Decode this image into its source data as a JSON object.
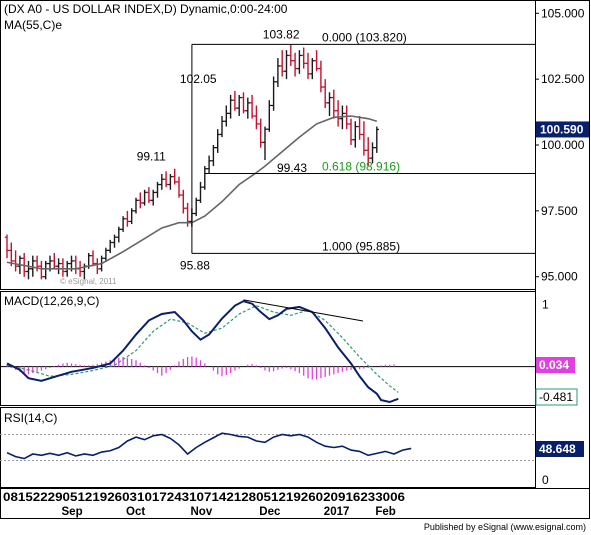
{
  "chart_data": [
    {
      "type": "ohlc",
      "title": "(DX A0 - US DOLLAR INDEX,D) Dynamic,0:00-24:00",
      "ma_label": "MA(55,C)e",
      "watermark": "© eSignal, 2011",
      "ylim": [
        94.8,
        105.2
      ],
      "y_ticks": [
        "105.000",
        "102.500",
        "100.000",
        "97.500",
        "95.000"
      ],
      "y_tick_values": [
        105,
        102.5,
        100,
        97.5,
        95
      ],
      "last_price": "100.590",
      "last_price_value": 100.59,
      "bars": [
        [
          96.5,
          96.6,
          95.7,
          96.0
        ],
        [
          96.0,
          96.3,
          95.4,
          95.6
        ],
        [
          95.6,
          96.0,
          95.2,
          95.4
        ],
        [
          95.4,
          95.8,
          95.1,
          95.7
        ],
        [
          95.7,
          95.9,
          95.0,
          95.2
        ],
        [
          95.2,
          95.6,
          94.9,
          95.3
        ],
        [
          95.3,
          95.8,
          95.0,
          95.6
        ],
        [
          95.6,
          95.8,
          95.2,
          95.4
        ],
        [
          95.4,
          95.6,
          94.9,
          95.0
        ],
        [
          95.0,
          95.6,
          94.9,
          95.5
        ],
        [
          95.5,
          95.8,
          95.2,
          95.6
        ],
        [
          95.6,
          95.9,
          95.3,
          95.4
        ],
        [
          95.4,
          95.7,
          95.1,
          95.5
        ],
        [
          95.5,
          95.7,
          95.0,
          95.2
        ],
        [
          95.2,
          95.6,
          95.0,
          95.5
        ],
        [
          95.5,
          95.8,
          95.2,
          95.6
        ],
        [
          95.6,
          95.8,
          95.1,
          95.3
        ],
        [
          95.3,
          95.6,
          95.0,
          95.2
        ],
        [
          95.2,
          95.5,
          94.9,
          95.4
        ],
        [
          95.4,
          95.9,
          95.3,
          95.8
        ],
        [
          95.8,
          96.0,
          95.4,
          95.5
        ],
        [
          95.5,
          95.7,
          95.1,
          95.3
        ],
        [
          95.3,
          95.8,
          95.2,
          95.7
        ],
        [
          95.7,
          96.1,
          95.6,
          96.0
        ],
        [
          96.0,
          96.4,
          95.9,
          96.3
        ],
        [
          96.3,
          96.6,
          96.1,
          96.5
        ],
        [
          96.5,
          96.9,
          96.3,
          96.8
        ],
        [
          96.8,
          97.3,
          96.7,
          97.2
        ],
        [
          97.2,
          97.5,
          96.9,
          97.1
        ],
        [
          97.1,
          97.6,
          97.0,
          97.5
        ],
        [
          97.5,
          98.0,
          97.4,
          97.9
        ],
        [
          97.9,
          98.2,
          97.6,
          97.8
        ],
        [
          97.8,
          98.3,
          97.7,
          98.2
        ],
        [
          98.2,
          98.4,
          97.8,
          97.9
        ],
        [
          97.9,
          98.3,
          97.7,
          98.2
        ],
        [
          98.2,
          98.6,
          98.0,
          98.5
        ],
        [
          98.5,
          98.9,
          98.3,
          98.7
        ],
        [
          98.7,
          99.0,
          98.4,
          98.5
        ],
        [
          98.5,
          98.9,
          98.3,
          98.8
        ],
        [
          98.8,
          99.1,
          98.5,
          98.6
        ],
        [
          98.6,
          98.8,
          98.0,
          98.1
        ],
        [
          98.1,
          98.3,
          97.4,
          97.6
        ],
        [
          97.6,
          97.8,
          96.9,
          97.1
        ],
        [
          97.1,
          97.6,
          96.9,
          97.4
        ],
        [
          97.4,
          98.0,
          97.3,
          97.9
        ],
        [
          97.9,
          98.6,
          97.8,
          98.4
        ],
        [
          98.4,
          99.2,
          98.3,
          99.1
        ],
        [
          99.1,
          99.6,
          98.9,
          99.4
        ],
        [
          99.4,
          100.0,
          99.2,
          99.9
        ],
        [
          99.9,
          100.6,
          99.7,
          100.4
        ],
        [
          100.4,
          101.1,
          100.3,
          100.9
        ],
        [
          100.9,
          101.5,
          100.7,
          101.2
        ],
        [
          101.2,
          101.9,
          101.0,
          101.7
        ],
        [
          101.7,
          102.05,
          101.3,
          101.4
        ],
        [
          101.4,
          101.9,
          101.1,
          101.8
        ],
        [
          101.8,
          102.0,
          101.2,
          101.3
        ],
        [
          101.3,
          101.8,
          101.0,
          101.6
        ],
        [
          101.6,
          101.9,
          101.0,
          101.1
        ],
        [
          101.1,
          101.5,
          100.6,
          100.8
        ],
        [
          100.8,
          101.0,
          99.9,
          100.1
        ],
        [
          100.1,
          100.7,
          99.43,
          100.6
        ],
        [
          100.6,
          101.7,
          100.5,
          101.5
        ],
        [
          101.5,
          102.6,
          101.3,
          102.4
        ],
        [
          102.4,
          103.3,
          102.2,
          103.0
        ],
        [
          103.0,
          103.6,
          102.6,
          102.8
        ],
        [
          102.8,
          103.6,
          102.5,
          103.4
        ],
        [
          103.4,
          103.82,
          103.0,
          103.2
        ],
        [
          103.2,
          103.5,
          102.6,
          102.9
        ],
        [
          102.9,
          103.6,
          102.7,
          103.4
        ],
        [
          103.4,
          103.7,
          102.9,
          103.1
        ],
        [
          103.1,
          103.5,
          102.5,
          102.7
        ],
        [
          102.7,
          103.3,
          102.5,
          103.2
        ],
        [
          103.2,
          103.6,
          102.8,
          102.9
        ],
        [
          102.9,
          103.2,
          102.0,
          102.2
        ],
        [
          102.2,
          102.5,
          101.4,
          101.6
        ],
        [
          101.6,
          102.0,
          101.1,
          101.8
        ],
        [
          101.8,
          102.1,
          101.0,
          101.3
        ],
        [
          101.3,
          101.7,
          100.7,
          101.0
        ],
        [
          101.0,
          101.5,
          100.6,
          101.2
        ],
        [
          101.2,
          101.5,
          100.6,
          100.8
        ],
        [
          100.8,
          101.0,
          100.0,
          100.2
        ],
        [
          100.2,
          100.9,
          99.9,
          100.7
        ],
        [
          100.7,
          101.1,
          100.2,
          100.4
        ],
        [
          100.4,
          100.9,
          99.6,
          99.8
        ],
        [
          99.8,
          100.3,
          99.2,
          99.5
        ],
        [
          99.5,
          100.1,
          99.3,
          99.9
        ],
        [
          99.9,
          100.7,
          99.7,
          100.59
        ]
      ],
      "ma55": [
        [
          0,
          95.55
        ],
        [
          8,
          95.3
        ],
        [
          16,
          95.3
        ],
        [
          22,
          95.5
        ],
        [
          27,
          95.95
        ],
        [
          32,
          96.45
        ],
        [
          36,
          96.85
        ],
        [
          40,
          97.05
        ],
        [
          43,
          97.05
        ],
        [
          46,
          97.3
        ],
        [
          50,
          97.85
        ],
        [
          54,
          98.5
        ],
        [
          58,
          98.95
        ],
        [
          60,
          99.2
        ],
        [
          64,
          99.75
        ],
        [
          68,
          100.3
        ],
        [
          72,
          100.8
        ],
        [
          76,
          101.05
        ],
        [
          80,
          101.1
        ],
        [
          84,
          101.0
        ],
        [
          86,
          100.9
        ]
      ],
      "fib": {
        "top": {
          "label": "0.000 (103.820)",
          "value": 103.82
        },
        "mid": {
          "label": "0.618 (98.916)",
          "value": 98.916
        },
        "bottom": {
          "label": "1.000 (95.885)",
          "value": 95.885
        },
        "anchor_bar": 43
      },
      "annotations": [
        {
          "text": "103.82",
          "bar": 66,
          "value": 103.82
        },
        {
          "text": "102.05",
          "bar": 53,
          "value": 102.05
        },
        {
          "text": "99.11",
          "bar": 39,
          "value": 99.11
        },
        {
          "text": "99.43",
          "bar": 60,
          "value": 99.43
        },
        {
          "text": "95.88",
          "bar": 43,
          "value": 95.885
        }
      ]
    },
    {
      "type": "line",
      "title": "MACD(12,26,9,C)",
      "ylim": [
        -0.55,
        1.1
      ],
      "y_tick_label": "1",
      "y_tick_value": 1,
      "zero_line": 0,
      "macd_value": "0.034",
      "signal_value": "-0.481",
      "macd": [
        [
          0,
          0.05
        ],
        [
          3,
          -0.05
        ],
        [
          5,
          -0.18
        ],
        [
          8,
          -0.22
        ],
        [
          11,
          -0.16
        ],
        [
          15,
          -0.08
        ],
        [
          20,
          -0.02
        ],
        [
          24,
          0.05
        ],
        [
          27,
          0.25
        ],
        [
          30,
          0.5
        ],
        [
          33,
          0.72
        ],
        [
          36,
          0.82
        ],
        [
          39,
          0.85
        ],
        [
          41,
          0.72
        ],
        [
          43,
          0.55
        ],
        [
          45,
          0.42
        ],
        [
          47,
          0.5
        ],
        [
          50,
          0.75
        ],
        [
          53,
          0.95
        ],
        [
          55,
          1.02
        ],
        [
          57,
          0.98
        ],
        [
          59,
          0.85
        ],
        [
          61,
          0.74
        ],
        [
          63,
          0.8
        ],
        [
          65,
          0.9
        ],
        [
          68,
          0.93
        ],
        [
          71,
          0.85
        ],
        [
          74,
          0.6
        ],
        [
          77,
          0.3
        ],
        [
          80,
          0.05
        ],
        [
          82,
          -0.15
        ],
        [
          84,
          -0.32
        ],
        [
          86,
          -0.42
        ],
        [
          87,
          -0.52
        ],
        [
          89,
          -0.55
        ],
        [
          91,
          -0.5
        ]
      ],
      "signal": [
        [
          0,
          0.02
        ],
        [
          5,
          -0.05
        ],
        [
          10,
          -0.15
        ],
        [
          15,
          -0.12
        ],
        [
          20,
          -0.06
        ],
        [
          25,
          0.02
        ],
        [
          30,
          0.25
        ],
        [
          34,
          0.55
        ],
        [
          38,
          0.74
        ],
        [
          42,
          0.68
        ],
        [
          46,
          0.52
        ],
        [
          50,
          0.6
        ],
        [
          54,
          0.82
        ],
        [
          58,
          0.95
        ],
        [
          62,
          0.85
        ],
        [
          66,
          0.8
        ],
        [
          70,
          0.88
        ],
        [
          74,
          0.72
        ],
        [
          78,
          0.45
        ],
        [
          82,
          0.15
        ],
        [
          86,
          -0.12
        ],
        [
          89,
          -0.3
        ],
        [
          91,
          -0.4
        ]
      ],
      "hist": [
        0.03,
        -0.02,
        -0.05,
        -0.08,
        -0.1,
        -0.12,
        -0.1,
        -0.08,
        -0.06,
        -0.04,
        -0.02,
        0.01,
        0.03,
        0.05,
        0.06,
        0.05,
        0.04,
        0.03,
        0.02,
        0.02,
        0.03,
        0.04,
        0.06,
        0.08,
        0.1,
        0.12,
        0.14,
        0.15,
        0.14,
        0.12,
        0.1,
        0.06,
        0.02,
        -0.02,
        -0.06,
        -0.1,
        -0.14,
        -0.1,
        -0.05,
        0.02,
        0.08,
        0.12,
        0.15,
        0.16,
        0.14,
        0.1,
        0.05,
        0.0,
        -0.06,
        -0.12,
        -0.15,
        -0.13,
        -0.1,
        -0.06,
        -0.03,
        0.0,
        0.03,
        0.04,
        0.02,
        -0.02,
        -0.06,
        -0.08,
        -0.07,
        -0.05,
        -0.03,
        -0.02,
        -0.04,
        -0.07,
        -0.1,
        -0.14,
        -0.18,
        -0.2,
        -0.2,
        -0.18,
        -0.16,
        -0.14,
        -0.12,
        -0.1,
        -0.08,
        -0.06,
        -0.05,
        -0.04,
        -0.04,
        -0.03,
        -0.02,
        -0.01,
        0.0,
        0.02,
        0.03,
        0.03,
        0.034
      ]
    },
    {
      "type": "line",
      "title": "RSI(14,C)",
      "ylim": [
        0,
        100
      ],
      "ref_lines": [
        70,
        30
      ],
      "y_tick_label": "0",
      "y_tick_value": 0,
      "last_value": "48.648",
      "rsi": [
        [
          0,
          42
        ],
        [
          2,
          36
        ],
        [
          4,
          33
        ],
        [
          6,
          40
        ],
        [
          8,
          38
        ],
        [
          10,
          41
        ],
        [
          12,
          38
        ],
        [
          14,
          42
        ],
        [
          16,
          37
        ],
        [
          18,
          40
        ],
        [
          20,
          38
        ],
        [
          22,
          43
        ],
        [
          24,
          45
        ],
        [
          26,
          50
        ],
        [
          28,
          60
        ],
        [
          30,
          66
        ],
        [
          32,
          62
        ],
        [
          34,
          68
        ],
        [
          36,
          70
        ],
        [
          38,
          64
        ],
        [
          40,
          54
        ],
        [
          42,
          40
        ],
        [
          44,
          50
        ],
        [
          46,
          58
        ],
        [
          48,
          65
        ],
        [
          50,
          72
        ],
        [
          52,
          70
        ],
        [
          54,
          67
        ],
        [
          56,
          66
        ],
        [
          58,
          60
        ],
        [
          60,
          58
        ],
        [
          62,
          66
        ],
        [
          64,
          70
        ],
        [
          66,
          68
        ],
        [
          68,
          70
        ],
        [
          70,
          66
        ],
        [
          72,
          58
        ],
        [
          74,
          52
        ],
        [
          76,
          50
        ],
        [
          78,
          52
        ],
        [
          80,
          46
        ],
        [
          82,
          44
        ],
        [
          84,
          38
        ],
        [
          86,
          41
        ],
        [
          88,
          44
        ],
        [
          90,
          40
        ],
        [
          92,
          46
        ],
        [
          94,
          48.6
        ]
      ]
    }
  ],
  "x_axis": {
    "day_ticks": "081522290512192603101724310714212805121926020916233006",
    "month_labels": [
      "Sep",
      "Oct",
      "Nov",
      "Dec",
      "2017",
      "Feb"
    ],
    "month_bars": [
      15,
      30,
      45,
      61,
      76,
      88
    ]
  },
  "footer": {
    "publisher": "Published by eSignal (www.esignal.com)"
  },
  "colors": {
    "up": "#1a1a1a",
    "down": "#c8102e",
    "ma": "#666666",
    "macd": "#0a1f6b",
    "signal": "#2e9b6e",
    "hist": "#e040e0",
    "rsi": "#0a1f6b",
    "price_tag": "#0a1f6b"
  }
}
